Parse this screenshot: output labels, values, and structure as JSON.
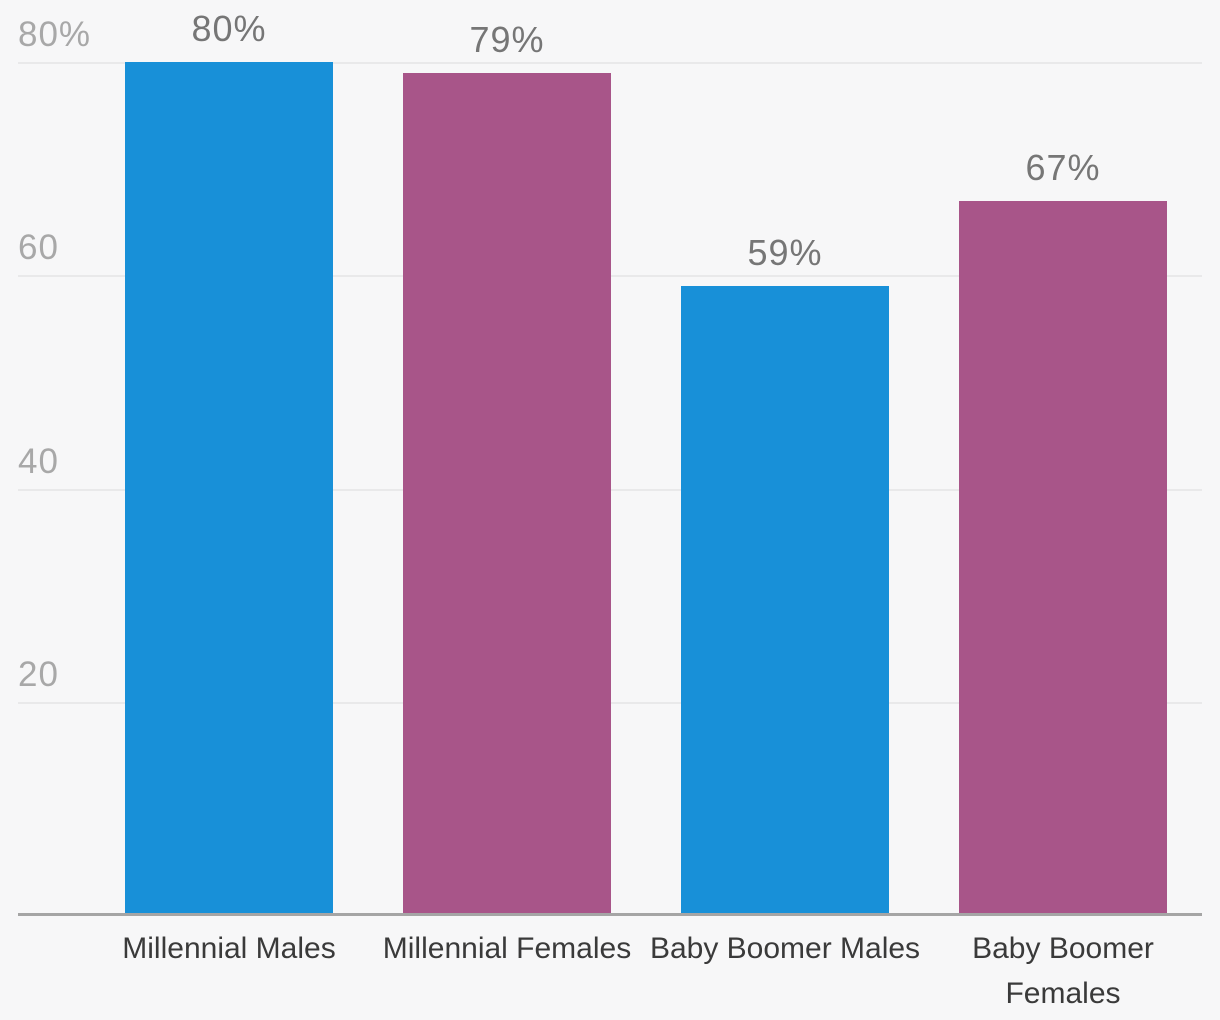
{
  "chart_data": {
    "type": "bar",
    "categories": [
      "Millennial Males",
      "Millennial Females",
      "Baby Boomer Males",
      "Baby Boomer Females"
    ],
    "values": [
      80,
      79,
      59,
      67
    ],
    "value_labels": [
      "80%",
      "79%",
      "59%",
      "67%"
    ],
    "bar_colors": [
      "#1890d8",
      "#a85589",
      "#1890d8",
      "#a85589"
    ],
    "series_hint": "blue = Males, purple = Females",
    "title": "",
    "xlabel": "",
    "ylabel": "",
    "grid": true,
    "legend": false,
    "y_axis": {
      "min": 0,
      "max": 80,
      "ticks": [
        {
          "value": 80,
          "label": "80%"
        },
        {
          "value": 60,
          "label": "60"
        },
        {
          "value": 40,
          "label": "40"
        },
        {
          "value": 20,
          "label": "20"
        }
      ]
    },
    "colors": {
      "background": "#f7f7f8",
      "gridline": "#e9e9ea",
      "axis_line": "#a5a5a5",
      "tick_label": "#a8a8a8",
      "value_label": "#767676",
      "category_label": "#3a3a3a",
      "male_bar": "#1890d8",
      "female_bar": "#a85589"
    }
  }
}
